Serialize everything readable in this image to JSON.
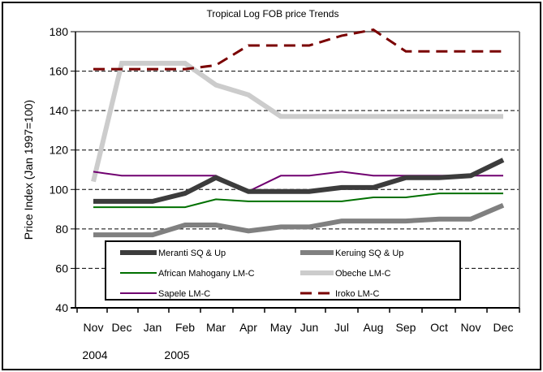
{
  "chart_data": {
    "type": "line",
    "title": "Tropical Log FOB price Trends",
    "xlabel": "",
    "ylabel": "Price Index (Jan 1997=100)",
    "ylim": [
      40,
      180
    ],
    "yticks": [
      "40",
      "60",
      "80",
      "100",
      "120",
      "140",
      "160",
      "180"
    ],
    "ytick_values": [
      40,
      60,
      80,
      100,
      120,
      140,
      160,
      180
    ],
    "categories": [
      "Nov",
      "Dec",
      "Jan",
      "Feb",
      "Mar",
      "Apr",
      "May",
      "Jun",
      "Jul",
      "Aug",
      "Sep",
      "Oct",
      "Nov",
      "Dec"
    ],
    "year_labels": [
      {
        "label": "2004",
        "category_index": 0
      },
      {
        "label": "2005",
        "category_index": 3
      }
    ],
    "grid": true,
    "legend_position": "bottom-inside",
    "series": [
      {
        "name": "Meranti SQ & Up",
        "color": "#3c3c3c",
        "style": "thick",
        "values": [
          94,
          94,
          94,
          98,
          106,
          99,
          99,
          99,
          101,
          101,
          106,
          106,
          107,
          115
        ]
      },
      {
        "name": "Keruing SQ & Up",
        "color": "#808080",
        "style": "thick",
        "values": [
          77,
          77,
          77,
          82,
          82,
          79,
          81,
          81,
          84,
          84,
          84,
          85,
          85,
          92
        ]
      },
      {
        "name": "African Mahogany LM-C",
        "color": "#007000",
        "style": "thin",
        "values": [
          91,
          91,
          91,
          91,
          95,
          94,
          94,
          94,
          94,
          96,
          96,
          98,
          98,
          98
        ]
      },
      {
        "name": "Obeche LM-C",
        "color": "#cccccc",
        "style": "thick",
        "values": [
          104,
          164,
          164,
          164,
          153,
          148,
          137,
          137,
          137,
          137,
          137,
          137,
          137,
          137
        ]
      },
      {
        "name": "Sapele LM-C",
        "color": "#700070",
        "style": "thin",
        "values": [
          109,
          107,
          107,
          107,
          107,
          99,
          107,
          107,
          109,
          107,
          107,
          107,
          107,
          107
        ]
      },
      {
        "name": "Iroko LM-C",
        "color": "#7a0000",
        "style": "dashed",
        "values": [
          161,
          161,
          161,
          161,
          163,
          173,
          173,
          173,
          178,
          181,
          170,
          170,
          170,
          170
        ]
      }
    ]
  }
}
